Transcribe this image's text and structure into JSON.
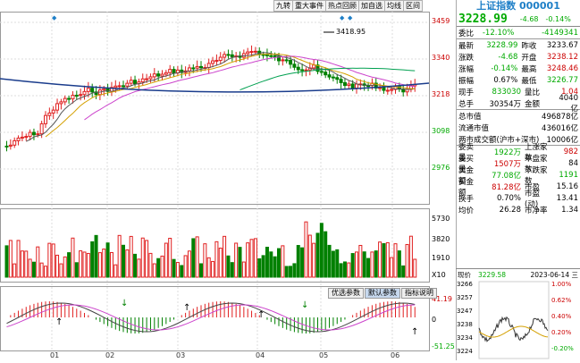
{
  "toolbar": {
    "buttons": [
      "九转",
      "重大事件",
      "热点回顾",
      "加自选",
      "均线",
      "区间"
    ]
  },
  "chart": {
    "price_axis": [
      "3459",
      "3340",
      "3218",
      "3098",
      "2976"
    ],
    "high_marker": "3418.95",
    "vol_axis": [
      "5730",
      "3820",
      "1910",
      "X10"
    ],
    "macd_axis": [
      "41.19",
      "0",
      "-51.25"
    ],
    "dates": [
      "01",
      "02",
      "03",
      "04",
      "05",
      "06"
    ],
    "indicator_tabs": [
      "优选参数",
      "默认参数",
      "指标说明"
    ],
    "colors": {
      "up": "#e02020",
      "down": "#008000",
      "accent": "#1e7fc7"
    }
  },
  "panel": {
    "title": "上证指数 000001",
    "price": "3228.99",
    "change": "-4.68",
    "change_pct": "-0.14%",
    "rows1": [
      {
        "k": "委比",
        "v": "-12.10%",
        "k2": "",
        "v2": "-4149341",
        "c": "g",
        "c2": "g"
      }
    ],
    "rows2": [
      {
        "k": "最新",
        "v": "3228.99",
        "k2": "昨收",
        "v2": "3233.67",
        "c": "g",
        "c2": ""
      },
      {
        "k": "涨跌",
        "v": "-4.68",
        "k2": "开盘",
        "v2": "3238.12",
        "c": "g",
        "c2": "r"
      },
      {
        "k": "涨幅",
        "v": "-0.14%",
        "k2": "最高",
        "v2": "3248.46",
        "c": "g",
        "c2": "r"
      },
      {
        "k": "振幅",
        "v": "0.67%",
        "k2": "最低",
        "v2": "3226.77",
        "c": "",
        "c2": "g"
      },
      {
        "k": "现手",
        "v": "833030",
        "k2": "量比",
        "v2": "1.04",
        "c": "g",
        "c2": "r"
      },
      {
        "k": "总手",
        "v": "30354万",
        "k2": "金额",
        "v2": "4040亿",
        "c": "",
        "c2": ""
      }
    ],
    "rows3": [
      {
        "k": "总市值",
        "v2": "496878亿"
      },
      {
        "k": "流通市值",
        "v2": "436016亿"
      },
      {
        "k": "两市成交额(沪市+深市)",
        "v2": "10006亿"
      }
    ],
    "rows4": [
      {
        "k": "委卖量",
        "v": "1922万",
        "k2": "上涨家数",
        "v2": "982",
        "c": "g",
        "c2": "r"
      },
      {
        "k": "委买量",
        "v": "1507万",
        "k2": "平盘家数",
        "v2": "84",
        "c": "r",
        "c2": ""
      },
      {
        "k": "卖金额",
        "v": "77.08亿",
        "k2": "下跌家数",
        "v2": "1191",
        "c": "g",
        "c2": "g"
      },
      {
        "k": "买金额",
        "v": "81.28亿",
        "k2": "市盈",
        "v2": "15.16",
        "c": "r",
        "c2": ""
      },
      {
        "k": "换手",
        "v": "0.70%",
        "k2": "市盈(动)",
        "v2": "13.41",
        "c": "",
        "c2": ""
      },
      {
        "k": "均价",
        "v": "26.28",
        "k2": "市净率",
        "v2": "1.34",
        "c": "",
        "c2": ""
      }
    ],
    "mini": {
      "label": "现价",
      "price": "3229.58",
      "datetime": "2023-06-14 三",
      "left_axis": [
        "3266",
        "3257",
        "3247",
        "3238",
        "3234",
        "3224"
      ],
      "right_axis": [
        "1.00%",
        "0.62%",
        "0.40%",
        "0.20%",
        "-0.20%"
      ]
    }
  }
}
